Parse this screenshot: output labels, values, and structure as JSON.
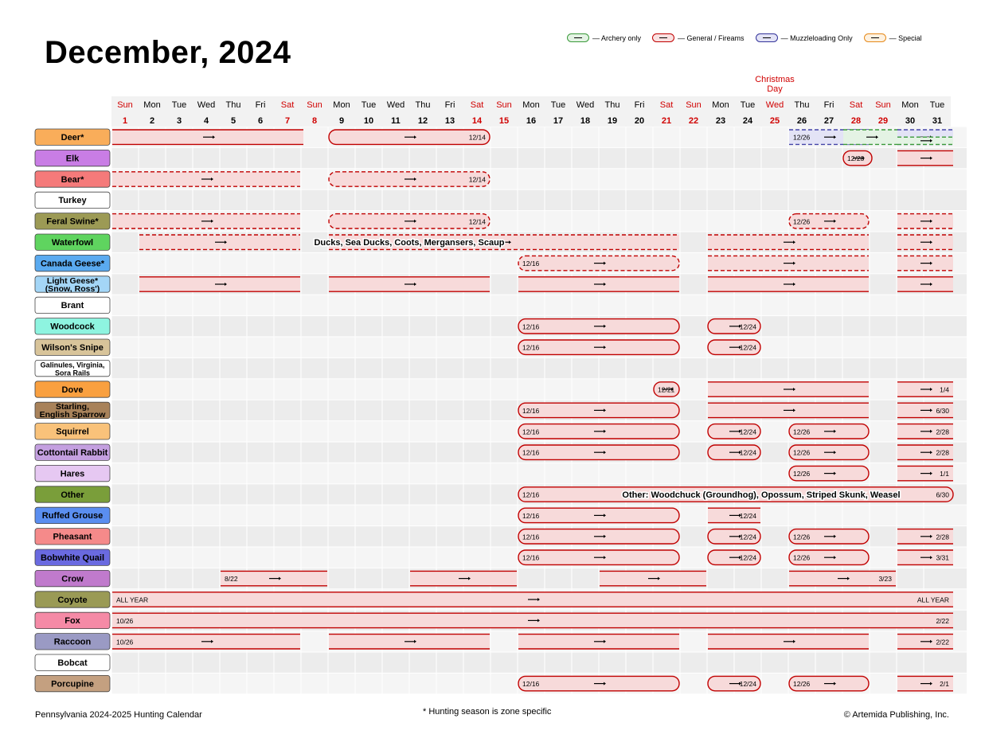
{
  "title": "December, 2024",
  "legend": [
    {
      "label": "— Archery only",
      "color": "#3a9a3a",
      "fill": "#e4f3e4",
      "icon": "arrow-icon"
    },
    {
      "label": "— General / Fireams",
      "color": "#c00000",
      "fill": "#f9e1e1",
      "icon": "bullet-icon"
    },
    {
      "label": "— Muzzleloading Only",
      "color": "#33339a",
      "fill": "#e3e3f6",
      "icon": "bullet-icon"
    },
    {
      "label": "— Special",
      "color": "#e68a1a",
      "fill": "#fdf1e0",
      "icon": "bullet-icon"
    }
  ],
  "holiday": "Christmas Day",
  "days": [
    {
      "dow": "Sun",
      "num": "1"
    },
    {
      "dow": "Mon",
      "num": "2"
    },
    {
      "dow": "Tue",
      "num": "3"
    },
    {
      "dow": "Wed",
      "num": "4"
    },
    {
      "dow": "Thu",
      "num": "5"
    },
    {
      "dow": "Fri",
      "num": "6"
    },
    {
      "dow": "Sat",
      "num": "7"
    },
    {
      "dow": "Sun",
      "num": "8"
    },
    {
      "dow": "Mon",
      "num": "9"
    },
    {
      "dow": "Tue",
      "num": "10"
    },
    {
      "dow": "Wed",
      "num": "11"
    },
    {
      "dow": "Thu",
      "num": "12"
    },
    {
      "dow": "Fri",
      "num": "13"
    },
    {
      "dow": "Sat",
      "num": "14"
    },
    {
      "dow": "Sun",
      "num": "15"
    },
    {
      "dow": "Mon",
      "num": "16"
    },
    {
      "dow": "Tue",
      "num": "17"
    },
    {
      "dow": "Wed",
      "num": "18"
    },
    {
      "dow": "Thu",
      "num": "19"
    },
    {
      "dow": "Fri",
      "num": "20"
    },
    {
      "dow": "Sat",
      "num": "21"
    },
    {
      "dow": "Sun",
      "num": "22"
    },
    {
      "dow": "Mon",
      "num": "23"
    },
    {
      "dow": "Tue",
      "num": "24"
    },
    {
      "dow": "Wed",
      "num": "25"
    },
    {
      "dow": "Thu",
      "num": "26"
    },
    {
      "dow": "Fri",
      "num": "27"
    },
    {
      "dow": "Sat",
      "num": "28"
    },
    {
      "dow": "Sun",
      "num": "29"
    },
    {
      "dow": "Mon",
      "num": "30"
    },
    {
      "dow": "Tue",
      "num": "31"
    }
  ],
  "red_days": [
    1,
    7,
    8,
    14,
    15,
    21,
    22,
    25,
    28,
    29
  ],
  "colors": {
    "sunday": "#d00000",
    "firearm": "#c00000",
    "firearm_fill": "#f7dada",
    "archery": "#3a9a3a",
    "archery_fill": "#e4f3e4",
    "muzzle": "#4444a8",
    "muzzle_fill": "#e3e3f6"
  },
  "rows": [
    {
      "label": "Deer*",
      "color": "#f9ad5a",
      "bars": [
        {
          "s": 1,
          "e": 7,
          "st": "solid",
          "lc": "l",
          "rc": "o"
        },
        {
          "s": 9,
          "e": 14,
          "st": "solid",
          "t2": "12/14",
          "rc": "r"
        },
        {
          "s": 26,
          "e": 28,
          "st": "dash",
          "c": "muzzle",
          "t1": "12/26",
          "dbl": true
        },
        {
          "s": 28,
          "e": 29,
          "st": "dash",
          "c": "archery",
          "rc": "o"
        },
        {
          "s": 30,
          "e": 31,
          "st": "dash",
          "c": "muzzle",
          "lc": "o",
          "rc": "o"
        },
        {
          "s": 30,
          "e": 31,
          "st": "dash",
          "c": "archery",
          "half": true,
          "rc": "o"
        }
      ]
    },
    {
      "label": "Elk",
      "color": "#c97de5",
      "bars": [
        {
          "s": 28,
          "e": 28,
          "st": "solid",
          "t1": "12/28",
          "lc": "r",
          "rc": "o"
        },
        {
          "s": 30,
          "e": 31,
          "st": "solid",
          "rc": "o"
        }
      ]
    },
    {
      "label": "Bear*",
      "color": "#f57a7a",
      "bars": [
        {
          "s": 1,
          "e": 7,
          "st": "dash"
        },
        {
          "s": 9,
          "e": 14,
          "st": "dash",
          "t2": "12/14",
          "rc": "r"
        }
      ]
    },
    {
      "label": "Turkey",
      "color": "#ffffff",
      "bars": []
    },
    {
      "label": "Feral Swine*",
      "color": "#9c9a55",
      "bars": [
        {
          "s": 1,
          "e": 7,
          "st": "dash"
        },
        {
          "s": 9,
          "e": 14,
          "st": "dash",
          "t2": "12/14",
          "rc": "r"
        },
        {
          "s": 26,
          "e": 28,
          "st": "dash",
          "t1": "12/26",
          "lc": "r"
        },
        {
          "s": 30,
          "e": 31,
          "st": "dash",
          "rc": "o"
        }
      ]
    },
    {
      "label": "Waterfowl",
      "color": "#5fd45f",
      "bars": [
        {
          "s": 2,
          "e": 7,
          "st": "dash"
        },
        {
          "s": 9,
          "e": 21,
          "st": "dash"
        },
        {
          "s": 23,
          "e": 28,
          "st": "dash"
        },
        {
          "s": 30,
          "e": 31,
          "st": "dash",
          "rc": "o"
        }
      ],
      "note": "Ducks, Sea Ducks, Coots, Mergansers, Scaup",
      "note_col": 12
    },
    {
      "label": "Canada Geese*",
      "color": "#5aaaf0",
      "bars": [
        {
          "s": 16,
          "e": 21,
          "st": "dash",
          "t1": "12/16",
          "lc": "r"
        },
        {
          "s": 23,
          "e": 28,
          "st": "dash"
        },
        {
          "s": 30,
          "e": 31,
          "st": "dash",
          "rc": "o"
        }
      ]
    },
    {
      "label": "Light Geese*",
      "label2": "(Snow, Ross')",
      "color": "#a4d6f7",
      "bars": [
        {
          "s": 2,
          "e": 7,
          "st": "solid"
        },
        {
          "s": 9,
          "e": 14,
          "st": "solid"
        },
        {
          "s": 16,
          "e": 21,
          "st": "solid"
        },
        {
          "s": 23,
          "e": 28,
          "st": "solid"
        },
        {
          "s": 30,
          "e": 31,
          "st": "solid",
          "rc": "o"
        }
      ]
    },
    {
      "label": "Brant",
      "color": "#ffffff",
      "bars": []
    },
    {
      "label": "Woodcock",
      "color": "#8ef4e0",
      "bars": [
        {
          "s": 16,
          "e": 21,
          "st": "solid",
          "t1": "12/16",
          "lc": "r",
          "rc": "r"
        },
        {
          "s": 23,
          "e": 24,
          "st": "solid",
          "t2": "12/24",
          "rc": "r"
        }
      ]
    },
    {
      "label": "Wilson's Snipe",
      "color": "#d8c49a",
      "bars": [
        {
          "s": 16,
          "e": 21,
          "st": "solid",
          "t1": "12/16",
          "lc": "r",
          "rc": "r"
        },
        {
          "s": 23,
          "e": 24,
          "st": "solid",
          "t2": "12/24",
          "rc": "r"
        }
      ]
    },
    {
      "label": "Galinules, Virginia,",
      "label2": "Sora Rails",
      "small": true,
      "color": "#ffffff",
      "bars": []
    },
    {
      "label": "Dove",
      "color": "#f9a040",
      "bars": [
        {
          "s": 21,
          "e": 21,
          "st": "solid",
          "t1": "12/21",
          "lc": "r",
          "rc": "r"
        },
        {
          "s": 23,
          "e": 28,
          "st": "solid"
        },
        {
          "s": 30,
          "e": 31,
          "st": "solid",
          "t2": "1/4",
          "rc": "o"
        }
      ]
    },
    {
      "label": "Starling,",
      "label2": "English Sparrow",
      "color": "#a8825a",
      "bars": [
        {
          "s": 16,
          "e": 21,
          "st": "solid",
          "t1": "12/16",
          "lc": "r"
        },
        {
          "s": 23,
          "e": 28,
          "st": "solid"
        },
        {
          "s": 30,
          "e": 31,
          "st": "solid",
          "t2": "6/30",
          "rc": "o"
        }
      ]
    },
    {
      "label": "Squirrel",
      "color": "#f9c27a",
      "bars": [
        {
          "s": 16,
          "e": 21,
          "st": "solid",
          "t1": "12/16",
          "lc": "r"
        },
        {
          "s": 23,
          "e": 24,
          "st": "solid",
          "t2": "12/24",
          "rc": "r"
        },
        {
          "s": 26,
          "e": 28,
          "st": "solid",
          "t1": "12/26",
          "lc": "r"
        },
        {
          "s": 30,
          "e": 31,
          "st": "solid",
          "t2": "2/28",
          "rc": "o"
        }
      ]
    },
    {
      "label": "Cottontail Rabbit",
      "color": "#c4a0e0",
      "bars": [
        {
          "s": 16,
          "e": 21,
          "st": "solid",
          "t1": "12/16",
          "lc": "r"
        },
        {
          "s": 23,
          "e": 24,
          "st": "solid",
          "t2": "12/24",
          "rc": "r"
        },
        {
          "s": 26,
          "e": 28,
          "st": "solid",
          "t1": "12/26",
          "lc": "r"
        },
        {
          "s": 30,
          "e": 31,
          "st": "solid",
          "t2": "2/28",
          "rc": "o"
        }
      ]
    },
    {
      "label": "Hares",
      "color": "#e6c8f2",
      "bars": [
        {
          "s": 26,
          "e": 28,
          "st": "solid",
          "t1": "12/26",
          "lc": "r"
        },
        {
          "s": 30,
          "e": 31,
          "st": "solid",
          "t2": "1/1",
          "rc": "o"
        }
      ]
    },
    {
      "label": "Other",
      "color": "#7a9e3a",
      "bars": [
        {
          "s": 16,
          "e": 31,
          "st": "solid",
          "t1": "12/16",
          "t2": "6/30",
          "lc": "r",
          "rc": "o"
        }
      ],
      "note": "Other: Woodchuck (Groundhog), Opossum, Striped Skunk, Weasel",
      "note_col": 25
    },
    {
      "label": "Ruffed Grouse",
      "color": "#5a8ef0",
      "bars": [
        {
          "s": 16,
          "e": 21,
          "st": "solid",
          "t1": "12/16",
          "lc": "r"
        },
        {
          "s": 23,
          "e": 24,
          "st": "solid",
          "t2": "12/24"
        }
      ]
    },
    {
      "label": "Pheasant",
      "color": "#f58a8a",
      "bars": [
        {
          "s": 16,
          "e": 21,
          "st": "solid",
          "t1": "12/16",
          "lc": "r"
        },
        {
          "s": 23,
          "e": 24,
          "st": "solid",
          "t2": "12/24",
          "rc": "r"
        },
        {
          "s": 26,
          "e": 28,
          "st": "solid",
          "t1": "12/26",
          "lc": "r"
        },
        {
          "s": 30,
          "e": 31,
          "st": "solid",
          "t2": "2/28",
          "rc": "o"
        }
      ]
    },
    {
      "label": "Bobwhite Quail",
      "color": "#6a6ae0",
      "bars": [
        {
          "s": 16,
          "e": 21,
          "st": "solid",
          "t1": "12/16",
          "lc": "r"
        },
        {
          "s": 23,
          "e": 24,
          "st": "solid",
          "t2": "12/24",
          "rc": "r"
        },
        {
          "s": 26,
          "e": 28,
          "st": "solid",
          "t1": "12/26",
          "lc": "r"
        },
        {
          "s": 30,
          "e": 31,
          "st": "solid",
          "t2": "3/31",
          "rc": "o"
        }
      ]
    },
    {
      "label": "Crow",
      "color": "#c07acc",
      "bars": [
        {
          "s": 5,
          "e": 8,
          "st": "solid",
          "t1": "8/22"
        },
        {
          "s": 12,
          "e": 15,
          "st": "solid"
        },
        {
          "s": 19,
          "e": 22,
          "st": "solid"
        },
        {
          "s": 26,
          "e": 29,
          "st": "solid",
          "t2": "3/23"
        }
      ]
    },
    {
      "label": "Coyote",
      "color": "#9a9a55",
      "bars": [
        {
          "s": 1,
          "e": 31,
          "st": "solid",
          "t1": "ALL YEAR",
          "t2": "ALL YEAR",
          "lc": "o",
          "rc": "o"
        }
      ]
    },
    {
      "label": "Fox",
      "color": "#f58aa6",
      "bars": [
        {
          "s": 1,
          "e": 31,
          "st": "solid",
          "t1": "10/26",
          "t2": "2/22",
          "lc": "o",
          "rc": "o"
        }
      ]
    },
    {
      "label": "Raccoon",
      "color": "#9a9ac4",
      "bars": [
        {
          "s": 1,
          "e": 7,
          "st": "solid",
          "t1": "10/26"
        },
        {
          "s": 9,
          "e": 14,
          "st": "solid"
        },
        {
          "s": 16,
          "e": 21,
          "st": "solid"
        },
        {
          "s": 23,
          "e": 28,
          "st": "solid"
        },
        {
          "s": 30,
          "e": 31,
          "st": "solid",
          "t2": "2/22",
          "rc": "o"
        }
      ]
    },
    {
      "label": "Bobcat",
      "color": "#ffffff",
      "bars": []
    },
    {
      "label": "Porcupine",
      "color": "#c4a080",
      "bars": [
        {
          "s": 16,
          "e": 21,
          "st": "solid",
          "t1": "12/16",
          "lc": "r"
        },
        {
          "s": 23,
          "e": 24,
          "st": "solid",
          "t2": "12/24",
          "rc": "r"
        },
        {
          "s": 26,
          "e": 28,
          "st": "solid",
          "t1": "12/26",
          "lc": "r"
        },
        {
          "s": 30,
          "e": 31,
          "st": "solid",
          "t2": "2/1",
          "rc": "o"
        }
      ]
    }
  ],
  "footer": {
    "left": "Pennsylvania 2024-2025 Hunting Calendar",
    "mid": "* Hunting season is zone specific",
    "right": "© Artemida Publishing, Inc."
  }
}
